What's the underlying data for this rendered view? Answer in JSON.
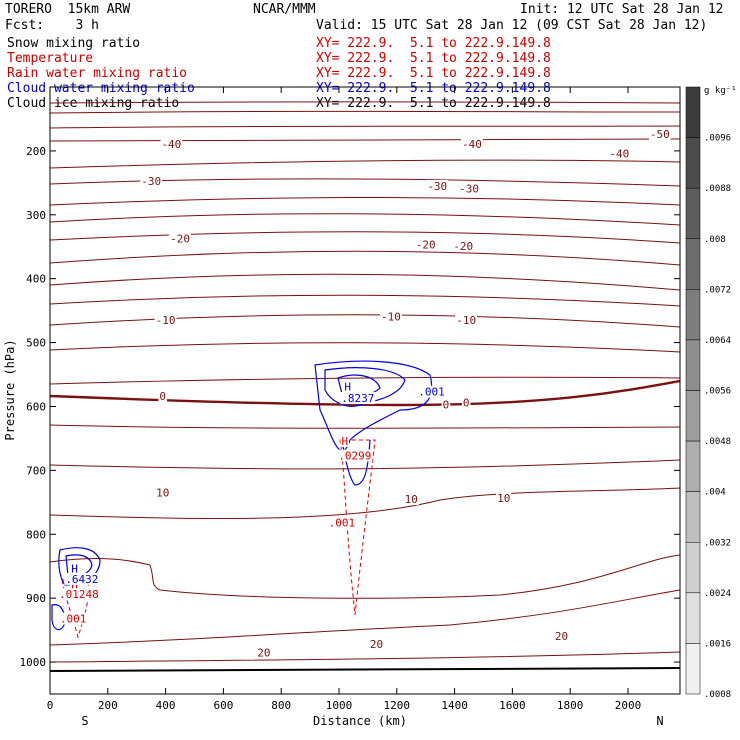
{
  "header": {
    "model": "TORERO  15km ARW",
    "center": "NCAR/MMM",
    "init": "Init: 12 UTC Sat 28 Jan 12",
    "fcst": "Fcst:    3 h",
    "valid": "Valid: 15 UTC Sat 28 Jan 12 (09 CST Sat 28 Jan 12)"
  },
  "legend": [
    {
      "name": "Snow mixing ratio",
      "xy": "",
      "color": "#000000"
    },
    {
      "name": "Temperature",
      "xy": "XY= 222.9.  5.1 to 222.9.149.8",
      "color": "#cc0000"
    },
    {
      "name": "Rain water mixing ratio",
      "xy": "XY= 222.9.  5.1 to 222.9.149.8",
      "color": "#cc0000"
    },
    {
      "name": "Cloud water mixing ratio",
      "xy": "XY= 222.9.  5.1 to 222.9.149.8",
      "color": "#0000cc"
    },
    {
      "name": "Cloud ice mixing ratio",
      "xy": "XY= 222.9.  5.1 to 222.9.149.8",
      "color": "#000000"
    }
  ],
  "snow_xy": "XY= 222.9.  5.1 to 222.9.149.8",
  "chart_data": {
    "type": "contour",
    "xlabel": "Distance (km)",
    "ylabel": "Pressure (hPa)",
    "xlim": [
      0,
      2180
    ],
    "ylim": [
      1050,
      100
    ],
    "xticks": [
      0,
      200,
      400,
      600,
      800,
      1000,
      1200,
      1400,
      1600,
      1800,
      2000
    ],
    "yticks": [
      200,
      300,
      400,
      500,
      600,
      700,
      800,
      900,
      1000
    ],
    "x_end_labels": {
      "left": "S",
      "right": "N"
    },
    "temperature_labels": [
      {
        "text": "-50",
        "x": 2110,
        "p": 177
      },
      {
        "text": "-40",
        "x": 420,
        "p": 192
      },
      {
        "text": "-40",
        "x": 1460,
        "p": 192
      },
      {
        "text": "-40",
        "x": 1970,
        "p": 207
      },
      {
        "text": "-30",
        "x": 350,
        "p": 250
      },
      {
        "text": "-30",
        "x": 1340,
        "p": 258
      },
      {
        "text": "-30",
        "x": 1450,
        "p": 262
      },
      {
        "text": "-20",
        "x": 450,
        "p": 340
      },
      {
        "text": "-20",
        "x": 1300,
        "p": 350
      },
      {
        "text": "-20",
        "x": 1430,
        "p": 352
      },
      {
        "text": "-10",
        "x": 400,
        "p": 468
      },
      {
        "text": "-10",
        "x": 1180,
        "p": 462
      },
      {
        "text": "-10",
        "x": 1440,
        "p": 468
      },
      {
        "text": "0",
        "x": 390,
        "p": 587
      },
      {
        "text": "0",
        "x": 1370,
        "p": 600
      },
      {
        "text": "0",
        "x": 1440,
        "p": 597
      },
      {
        "text": "10",
        "x": 390,
        "p": 738
      },
      {
        "text": "10",
        "x": 1250,
        "p": 748
      },
      {
        "text": "10",
        "x": 1570,
        "p": 746
      },
      {
        "text": "20",
        "x": 740,
        "p": 988
      },
      {
        "text": "20",
        "x": 1130,
        "p": 975
      },
      {
        "text": "20",
        "x": 1770,
        "p": 962
      }
    ],
    "rain_labels": [
      {
        "text": "H",
        "x": 1020,
        "p": 657
      },
      {
        "text": ".0299",
        "x": 1055,
        "p": 680
      },
      {
        "text": ".001",
        "x": 1010,
        "p": 785
      },
      {
        "text": "H",
        "x": 85,
        "p": 882
      },
      {
        "text": ".01248",
        "x": 100,
        "p": 897
      },
      {
        "text": ".001",
        "x": 80,
        "p": 935
      }
    ],
    "cloud_water_labels": [
      {
        "text": "H",
        "x": 1030,
        "p": 572
      },
      {
        "text": ".8237",
        "x": 1065,
        "p": 590
      },
      {
        "text": ".001",
        "x": 1320,
        "p": 580
      },
      {
        "text": "H",
        "x": 85,
        "p": 857
      },
      {
        "text": ".6432",
        "x": 110,
        "p": 873
      }
    ],
    "colorbar": {
      "unit": "g kg⁻¹",
      "ticks": [
        ".0096",
        ".0088",
        ".008",
        ".0072",
        ".0064",
        ".0056",
        ".0048",
        ".004",
        ".0032",
        ".0024",
        ".0016",
        ".0008"
      ]
    }
  }
}
